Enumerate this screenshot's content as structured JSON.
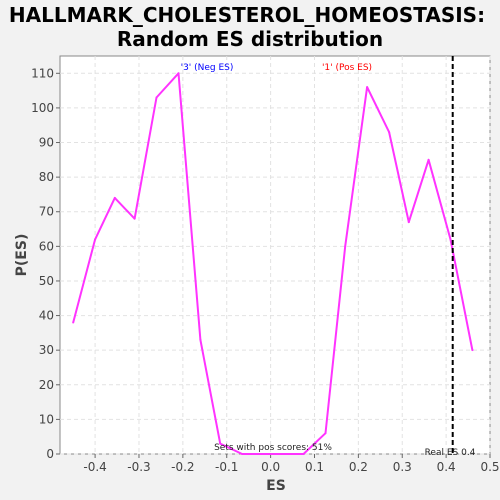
{
  "chart_data": {
    "type": "line",
    "title": "HALLMARK_CHOLESTEROL_HOMEOSTASIS:",
    "subtitle": "Random ES distribution",
    "xlabel": "ES",
    "ylabel": "P(ES)",
    "xlim": [
      -0.48,
      0.5
    ],
    "ylim": [
      0,
      115
    ],
    "x_ticks": [
      "-0.4",
      "-0.3",
      "-0.2",
      "-0.1",
      "0.0",
      "0.1",
      "0.2",
      "0.3",
      "0.4",
      "0.5"
    ],
    "y_ticks": [
      "0",
      "10",
      "20",
      "30",
      "40",
      "50",
      "60",
      "70",
      "80",
      "90",
      "100",
      "110"
    ],
    "grid": true,
    "series": [
      {
        "x": [
          -0.45,
          -0.4,
          -0.355,
          -0.31,
          -0.26,
          -0.21,
          -0.16,
          -0.115,
          -0.065,
          0.0,
          0.075,
          0.125,
          0.17,
          0.22,
          0.27,
          0.315,
          0.36,
          0.41,
          0.46
        ],
        "y": [
          38,
          62,
          74,
          68,
          103,
          110,
          33,
          3,
          0,
          0,
          0,
          6,
          60,
          106,
          93,
          67,
          85,
          62,
          30
        ],
        "color": "#ff33ff"
      }
    ],
    "annotations": {
      "neg_label": "'3' (Neg ES)",
      "neg_color": "#0000ff",
      "pos_label": "'1' (Pos ES)",
      "pos_color": "#ff0000",
      "pos_scores_text": "Sets with pos scores: 51%",
      "real_es_text": "Real ES 0.4",
      "real_es": 0.415
    }
  }
}
